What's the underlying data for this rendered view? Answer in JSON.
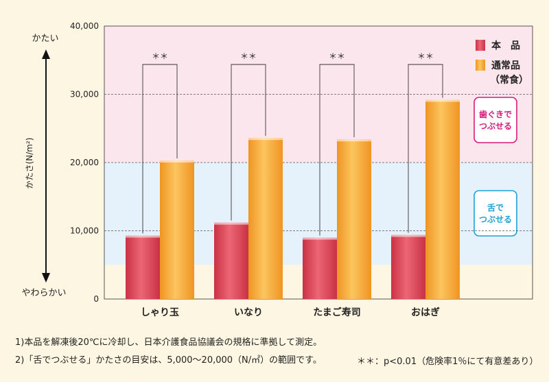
{
  "chart_data": {
    "type": "bar",
    "categories": [
      "しゃり玉",
      "いなり",
      "たまご寿司",
      "おはぎ"
    ],
    "series": [
      {
        "name": "本　品",
        "values": [
          9300,
          11200,
          9000,
          9400
        ],
        "color": "#e0505f"
      },
      {
        "name": "通常品（常食）",
        "values": [
          20300,
          23600,
          23400,
          29200
        ],
        "color": "#f4a52c"
      }
    ],
    "ylim": [
      0,
      40000
    ],
    "yticks": [
      "0",
      "10,000",
      "20,000",
      "30,000",
      "40,000"
    ],
    "ylabel": "かたさ(N/m²)",
    "y_top_label": "かたい",
    "y_bottom_label": "やわらかい",
    "significance_marks": [
      "＊＊",
      "＊＊",
      "＊＊",
      "＊＊"
    ],
    "grid": "dashed at 10,000 / 20,000 / 30,000",
    "legend_position": "top-right",
    "bands": [
      {
        "from": 20000,
        "to": 40000,
        "color": "#fce6ee",
        "label": "歯ぐきで\nつぶせる",
        "label_color": "#d6197a"
      },
      {
        "from": 5000,
        "to": 20000,
        "color": "#e5f2fb",
        "label": "舌で\nつぶせる",
        "label_color": "#1ba0d8"
      },
      {
        "from": 0,
        "to": 5000,
        "color": "#fdf6e2"
      }
    ]
  },
  "notes": {
    "note1": "1)本品を解凍後20℃に冷却し、日本介護食品協議会の規格に準拠して測定。",
    "note2": "2)「舌でつぶせる」かたさの目安は、5,000〜20,000（N/㎡）の範囲です。",
    "significance": "＊＊：p<0.01（危険率1％にて有意差あり）"
  }
}
